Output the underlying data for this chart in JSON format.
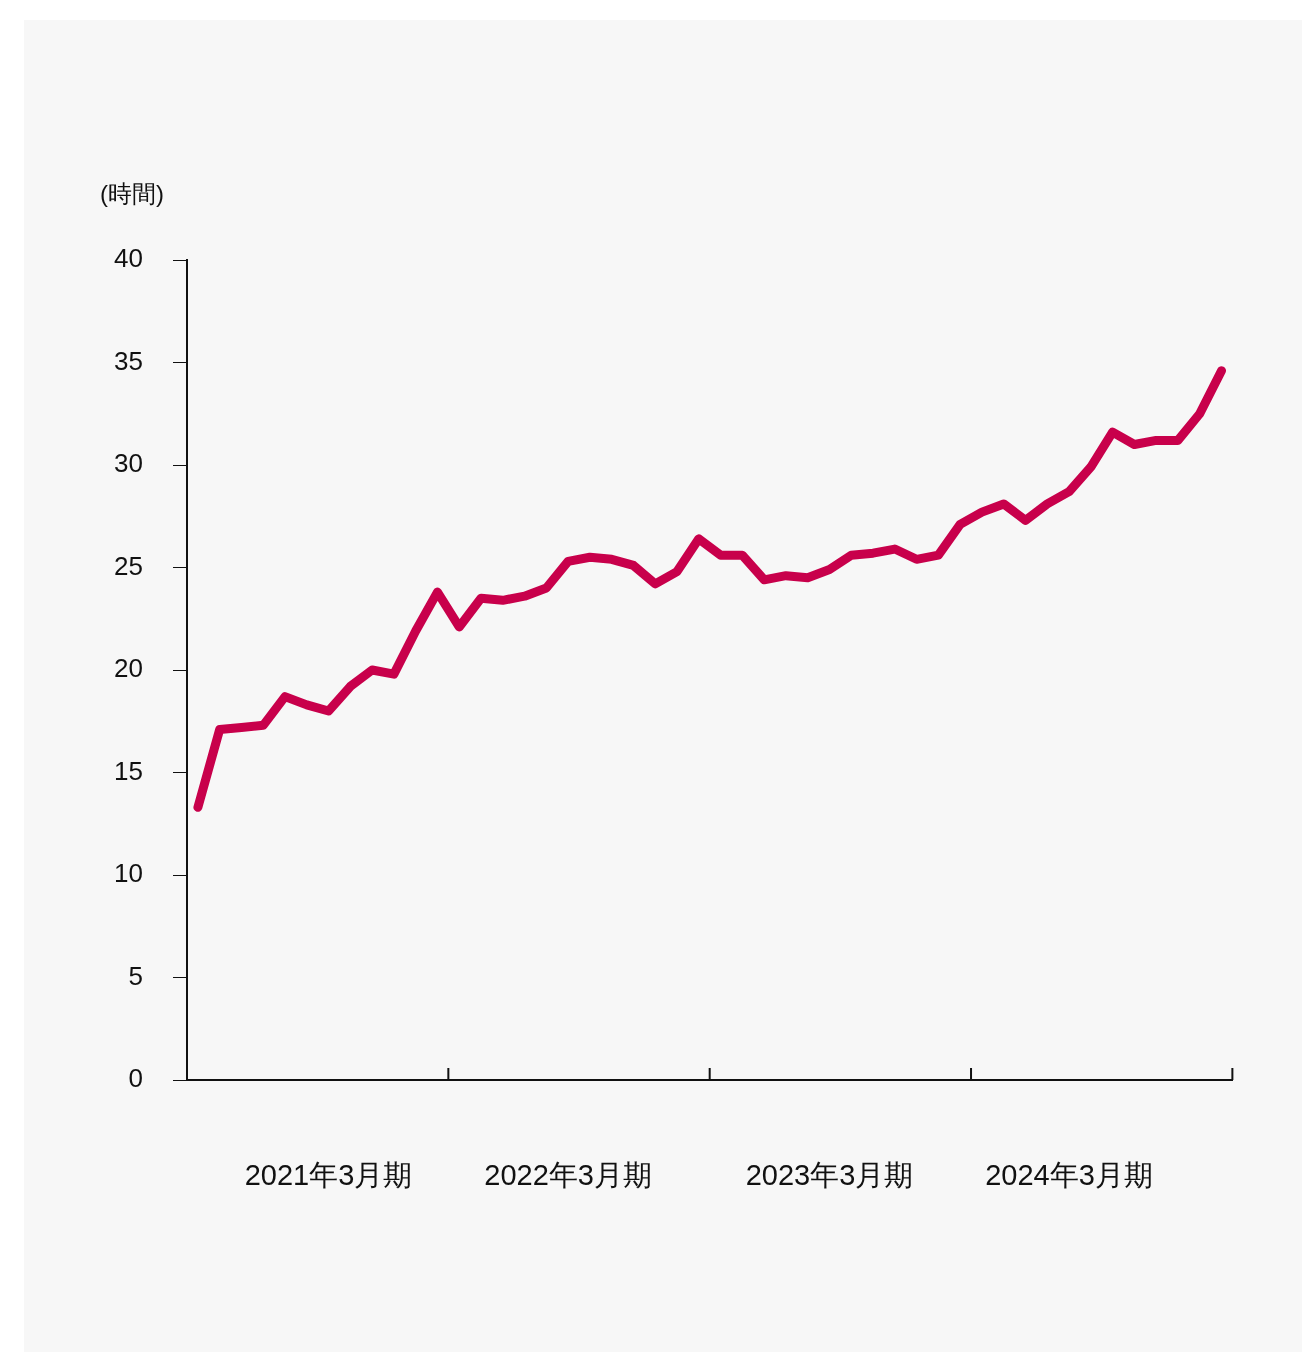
{
  "chart_data": {
    "type": "line",
    "ylabel": "(時間)",
    "categories": [
      null,
      null,
      null,
      null,
      null,
      null,
      "2021年3月期",
      null,
      null,
      null,
      null,
      null,
      null,
      null,
      null,
      null,
      null,
      "2022年3月期",
      null,
      null,
      null,
      null,
      null,
      null,
      null,
      null,
      null,
      null,
      null,
      "2023年3月期",
      null,
      null,
      null,
      null,
      null,
      null,
      null,
      null,
      null,
      null,
      "2024年3月期",
      null,
      null,
      null,
      null,
      null,
      null,
      null
    ],
    "series": [
      {
        "color": "#c8004b",
        "values": [
          13.3,
          17.1,
          17.2,
          17.3,
          18.7,
          18.3,
          18.0,
          19.2,
          20.0,
          19.8,
          21.9,
          23.8,
          22.1,
          23.5,
          23.4,
          23.6,
          24.0,
          25.3,
          25.5,
          25.4,
          25.1,
          24.2,
          24.8,
          26.4,
          25.6,
          25.6,
          24.4,
          24.6,
          24.5,
          24.9,
          25.6,
          25.7,
          25.9,
          25.4,
          25.6,
          27.1,
          27.7,
          28.1,
          27.3,
          28.1,
          28.7,
          29.9,
          31.6,
          31.0,
          31.2,
          31.2,
          32.5,
          34.6
        ]
      }
    ],
    "ylim": [
      0,
      40
    ],
    "yticks": [
      0,
      5,
      10,
      15,
      20,
      25,
      30,
      35,
      40
    ],
    "marker": "none",
    "line_style": "solid"
  }
}
